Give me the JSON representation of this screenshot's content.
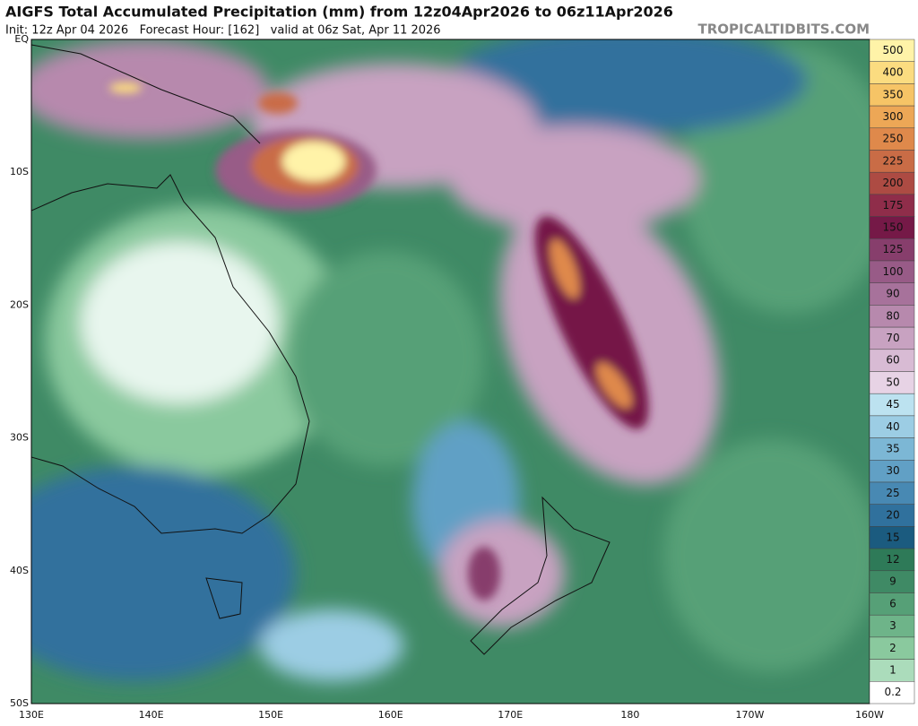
{
  "title": "AIGFS Total Accumulated Precipitation (mm) from 12z04Apr2026 to 06z11Apr2026",
  "init_line": "Init: 12z Apr 04 2026   Forecast Hour: [162]   valid at 06z Sat, Apr 11 2026",
  "watermark": "TROPICALTIDBITS.COM",
  "lat_labels": [
    "EQ",
    "10S",
    "20S",
    "30S",
    "40S",
    "50S"
  ],
  "lon_labels": [
    "130E",
    "140E",
    "150E",
    "160E",
    "170E",
    "180",
    "170W",
    "160W"
  ],
  "colorbar": [
    {
      "label": "500",
      "color": "#fff3a8"
    },
    {
      "label": "400",
      "color": "#fbdc80"
    },
    {
      "label": "350",
      "color": "#f6c466"
    },
    {
      "label": "300",
      "color": "#eda756"
    },
    {
      "label": "250",
      "color": "#df894b"
    },
    {
      "label": "225",
      "color": "#c96c46"
    },
    {
      "label": "200",
      "color": "#ad4b43"
    },
    {
      "label": "175",
      "color": "#8f2d4a"
    },
    {
      "label": "150",
      "color": "#751947"
    },
    {
      "label": "125",
      "color": "#873e6c"
    },
    {
      "label": "100",
      "color": "#985b87"
    },
    {
      "label": "90",
      "color": "#a7729b"
    },
    {
      "label": "80",
      "color": "#b789ad"
    },
    {
      "label": "70",
      "color": "#c8a2c1"
    },
    {
      "label": "60",
      "color": "#d8bbd4"
    },
    {
      "label": "50",
      "color": "#e7d3e5"
    },
    {
      "label": "45",
      "color": "#bce2f0"
    },
    {
      "label": "40",
      "color": "#9ccde4"
    },
    {
      "label": "35",
      "color": "#7cb7d5"
    },
    {
      "label": "30",
      "color": "#61a0c5"
    },
    {
      "label": "25",
      "color": "#4889b3"
    },
    {
      "label": "20",
      "color": "#30719d"
    },
    {
      "label": "15",
      "color": "#1b5b7f"
    },
    {
      "label": "12",
      "color": "#2e7a58"
    },
    {
      "label": "9",
      "color": "#3f8a65"
    },
    {
      "label": "6",
      "color": "#56a077"
    },
    {
      "label": "3",
      "color": "#6eb489"
    },
    {
      "label": "2",
      "color": "#8ac99e"
    },
    {
      "label": "1",
      "color": "#abdcbb"
    },
    {
      "label": "0.2",
      "color": "#ffffff"
    }
  ]
}
